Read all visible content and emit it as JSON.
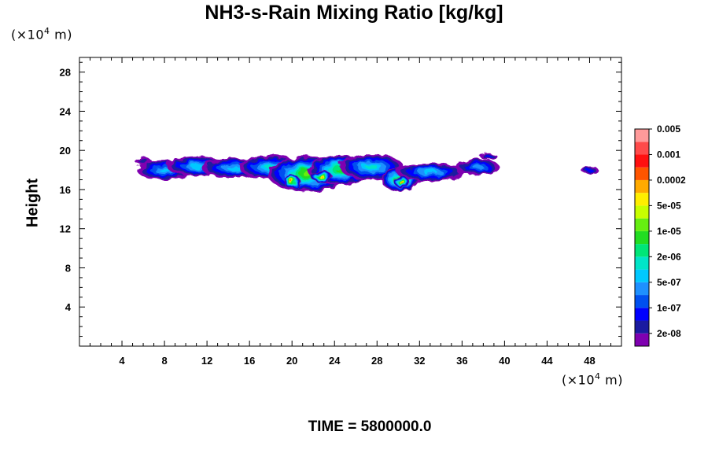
{
  "chart_data": {
    "type": "heatmap",
    "title": "NH3-s-Rain Mixing Ratio [kg/kg]",
    "xlabel": "",
    "ylabel": "Height",
    "x_unit": "m",
    "x_unit_exponent": "4",
    "y_unit": "m",
    "y_unit_exponent": "4",
    "xlim": [
      0,
      51
    ],
    "ylim": [
      0,
      29.5
    ],
    "x_ticks": [
      4,
      8,
      12,
      16,
      20,
      24,
      28,
      32,
      36,
      40,
      44,
      48
    ],
    "y_ticks": [
      4,
      8,
      12,
      16,
      20,
      24,
      28
    ],
    "time_label": "TIME = 5800000.0",
    "colorbar": {
      "colors": [
        "#7f00b0",
        "#1a1aa0",
        "#0000ff",
        "#0050f0",
        "#1e90ff",
        "#00c8ff",
        "#00e5c8",
        "#00e678",
        "#22dd22",
        "#66ee11",
        "#c8ff00",
        "#ffee00",
        "#ffaa00",
        "#ff5500",
        "#ff1010",
        "#ff4a4a",
        "#ff9a9a"
      ],
      "labels": [
        "2e-08",
        "1e-07",
        "5e-07",
        "2e-06",
        "1e-05",
        "5e-05",
        "0.0002",
        "0.001",
        "0.005"
      ],
      "label_positions": [
        1,
        3,
        5,
        7,
        9,
        11,
        13,
        15,
        17
      ]
    },
    "blobs": [
      {
        "x": 6.0,
        "y": 18.9,
        "rx": 0.8,
        "ry": 0.35,
        "level": 1
      },
      {
        "x": 8.0,
        "y": 18.0,
        "rx": 2.6,
        "ry": 1.0,
        "level": 5
      },
      {
        "x": 11.0,
        "y": 18.4,
        "rx": 2.8,
        "ry": 1.0,
        "level": 5
      },
      {
        "x": 14.5,
        "y": 18.2,
        "rx": 3.0,
        "ry": 1.0,
        "level": 5
      },
      {
        "x": 18.0,
        "y": 18.3,
        "rx": 3.0,
        "ry": 1.2,
        "level": 6
      },
      {
        "x": 21.5,
        "y": 17.6,
        "rx": 3.8,
        "ry": 1.8,
        "level": 9
      },
      {
        "x": 24.5,
        "y": 18.0,
        "rx": 3.0,
        "ry": 1.5,
        "level": 8
      },
      {
        "x": 27.5,
        "y": 18.3,
        "rx": 3.0,
        "ry": 1.3,
        "level": 6
      },
      {
        "x": 30.2,
        "y": 17.0,
        "rx": 1.8,
        "ry": 1.2,
        "level": 10
      },
      {
        "x": 33.0,
        "y": 17.8,
        "rx": 3.2,
        "ry": 0.9,
        "level": 5
      },
      {
        "x": 37.5,
        "y": 18.3,
        "rx": 2.0,
        "ry": 0.8,
        "level": 4
      },
      {
        "x": 38.5,
        "y": 19.4,
        "rx": 0.8,
        "ry": 0.35,
        "level": 2
      },
      {
        "x": 48.0,
        "y": 18.0,
        "rx": 0.8,
        "ry": 0.4,
        "level": 2
      }
    ],
    "peaks": [
      {
        "x": 20.0,
        "y": 16.8,
        "rx": 0.8,
        "ry": 0.7,
        "level": 13
      },
      {
        "x": 22.8,
        "y": 17.3,
        "rx": 1.0,
        "ry": 0.6,
        "level": 12
      },
      {
        "x": 30.3,
        "y": 16.8,
        "rx": 0.7,
        "ry": 0.6,
        "level": 13
      }
    ]
  }
}
